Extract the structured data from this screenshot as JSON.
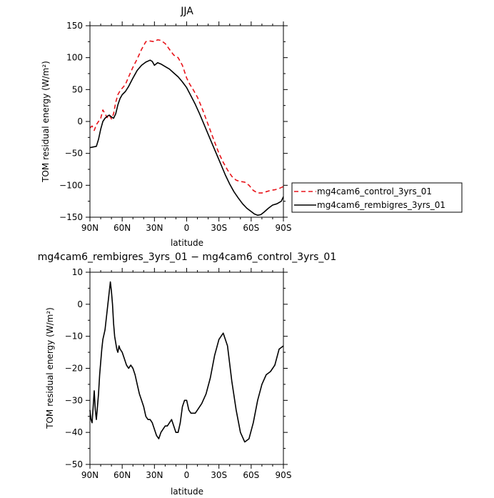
{
  "chart_data": [
    {
      "type": "line",
      "title": "JJA",
      "xlabel": "latitude",
      "ylabel": "TOM residual energy (W/m²)",
      "xlim": [
        90,
        -90
      ],
      "ylim": [
        -150,
        150
      ],
      "x_ticks": [
        90,
        60,
        30,
        0,
        -30,
        -60,
        -90
      ],
      "x_tick_labels": [
        "90N",
        "60N",
        "30N",
        "0",
        "30S",
        "60S",
        "90S"
      ],
      "y_ticks": [
        150,
        100,
        50,
        0,
        -50,
        -100,
        -150
      ],
      "y_tick_labels": [
        "150",
        "100",
        "50",
        "0",
        "−50",
        "−100",
        "−150"
      ],
      "grid": false,
      "legend_position": "right",
      "series": [
        {
          "name": "mg4cam6_control_3yrs_01",
          "color": "#e8141a",
          "dash": "dashed",
          "x": [
            90,
            88,
            86,
            84,
            82,
            80,
            78,
            76,
            74,
            72,
            70,
            68,
            66,
            64,
            62,
            60,
            57,
            54,
            50,
            46,
            42,
            38,
            34,
            30,
            27,
            24,
            20,
            16,
            12,
            8,
            4,
            0,
            -3,
            -6,
            -10,
            -14,
            -18,
            -22,
            -26,
            -30,
            -34,
            -38,
            -42,
            -46,
            -50,
            -54,
            -58,
            -62,
            -66,
            -70,
            -74,
            -78,
            -82,
            -86,
            -90
          ],
          "y": [
            -10,
            -7,
            -14,
            -5,
            0,
            5,
            18,
            12,
            6,
            10,
            4,
            12,
            30,
            42,
            48,
            52,
            58,
            70,
            85,
            98,
            113,
            125,
            126,
            125,
            128,
            127,
            122,
            113,
            104,
            100,
            88,
            68,
            58,
            50,
            38,
            22,
            4,
            -14,
            -32,
            -50,
            -64,
            -76,
            -86,
            -92,
            -94,
            -95,
            -100,
            -108,
            -112,
            -112,
            -110,
            -108,
            -107,
            -105,
            -102
          ]
        },
        {
          "name": "mg4cam6_rembigres_3yrs_01",
          "color": "#000000",
          "dash": "solid",
          "x": [
            90,
            87,
            84,
            82,
            80,
            78,
            76,
            74,
            72,
            70,
            68,
            66,
            64,
            62,
            60,
            57,
            54,
            50,
            46,
            42,
            38,
            34,
            32,
            30,
            27,
            24,
            20,
            16,
            12,
            8,
            4,
            0,
            -4,
            -8,
            -12,
            -16,
            -20,
            -24,
            -28,
            -32,
            -36,
            -40,
            -44,
            -48,
            -52,
            -56,
            -60,
            -63,
            -66,
            -69,
            -72,
            -76,
            -80,
            -84,
            -88,
            -90
          ],
          "y": [
            -41,
            -40,
            -39,
            -28,
            -12,
            0,
            5,
            8,
            10,
            7,
            5,
            12,
            26,
            36,
            42,
            47,
            55,
            68,
            80,
            88,
            93,
            96,
            94,
            88,
            92,
            90,
            86,
            82,
            76,
            70,
            62,
            53,
            40,
            27,
            12,
            -4,
            -20,
            -36,
            -52,
            -68,
            -84,
            -98,
            -110,
            -120,
            -129,
            -136,
            -141,
            -145,
            -147,
            -146,
            -142,
            -136,
            -131,
            -129,
            -125,
            -118
          ]
        }
      ]
    },
    {
      "type": "line",
      "title": "mg4cam6_rembigres_3yrs_01 − mg4cam6_control_3yrs_01",
      "xlabel": "latitude",
      "ylabel": "TOM residual energy (W/m²)",
      "xlim": [
        90,
        -90
      ],
      "ylim": [
        -50,
        10
      ],
      "x_ticks": [
        90,
        60,
        30,
        0,
        -30,
        -60,
        -90
      ],
      "x_tick_labels": [
        "90N",
        "60N",
        "30N",
        "0",
        "30S",
        "60S",
        "90S"
      ],
      "y_ticks": [
        10,
        0,
        -10,
        -20,
        -30,
        -40,
        -50
      ],
      "y_tick_labels": [
        "10",
        "0",
        "−10",
        "−20",
        "−30",
        "−40",
        "−50"
      ],
      "grid": false,
      "series": [
        {
          "color": "#000000",
          "dash": "solid",
          "x": [
            90,
            89,
            88,
            87,
            86,
            85,
            84,
            83,
            82,
            81,
            80,
            79,
            78,
            76,
            74,
            72,
            71,
            70,
            69,
            68,
            67,
            66,
            65,
            64,
            63,
            62,
            60,
            58,
            56,
            54,
            52,
            50,
            48,
            46,
            44,
            42,
            40,
            38,
            36,
            34,
            32,
            30,
            28,
            26,
            24,
            22,
            20,
            18,
            16,
            14,
            12,
            10,
            8,
            6,
            4,
            2,
            0,
            -2,
            -4,
            -6,
            -8,
            -10,
            -14,
            -18,
            -22,
            -26,
            -30,
            -34,
            -38,
            -42,
            -46,
            -50,
            -54,
            -58,
            -62,
            -66,
            -70,
            -74,
            -78,
            -82,
            -86,
            -90
          ],
          "y": [
            -33,
            -36,
            -37,
            -32,
            -27,
            -33,
            -36,
            -32,
            -28,
            -22,
            -18,
            -14,
            -11,
            -8,
            -2,
            4,
            7,
            4,
            0,
            -6,
            -10,
            -12,
            -14,
            -15,
            -13,
            -14,
            -15,
            -17,
            -19,
            -20,
            -19,
            -20,
            -22,
            -25,
            -28,
            -30,
            -32,
            -35,
            -36,
            -36,
            -37,
            -39,
            -41,
            -42,
            -40,
            -39,
            -38,
            -38,
            -37,
            -36,
            -38,
            -40,
            -40,
            -37,
            -32,
            -30,
            -30,
            -33,
            -34,
            -34,
            -34,
            -33,
            -31,
            -28,
            -23,
            -16,
            -11,
            -9,
            -13,
            -24,
            -33,
            -40,
            -43,
            -42,
            -37,
            -30,
            -25,
            -22,
            -21,
            -19,
            -14,
            -13
          ]
        }
      ]
    }
  ]
}
